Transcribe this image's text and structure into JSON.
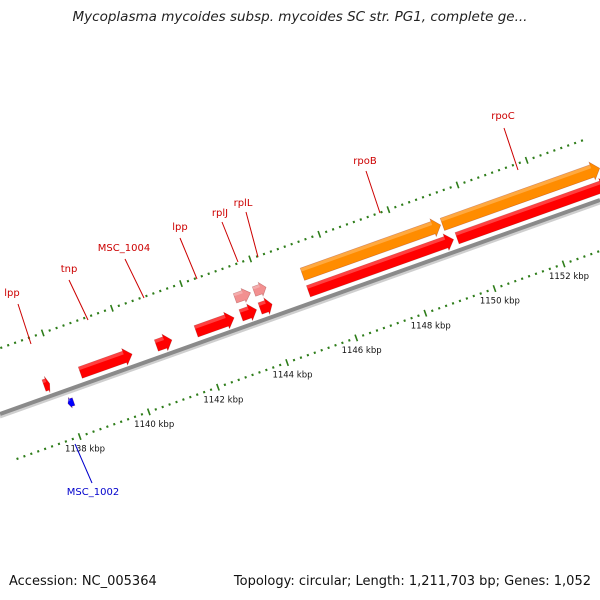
{
  "title": "Mycoplasma mycoides subsp. mycoides SC str. PG1, complete ge...",
  "footer": {
    "accession": "Accession: NC_005364",
    "topology": "Topology: circular; Length: 1,211,703 bp; Genes: 1,052"
  },
  "colors": {
    "forward_gene": "#ff0000",
    "reverse_gene": "#0000ff",
    "rna_gene": "#ff8c00",
    "faint_gene": "#f29090",
    "tick": "#2e7d1a",
    "backbone": "#8a8a8a",
    "forward_label": "#cc0000",
    "reverse_label": "#0000cc"
  },
  "axis": {
    "unit": "kbp",
    "major_ticks_kbp": [
      1138,
      1140,
      1142,
      1144,
      1146,
      1148,
      1150,
      1152
    ],
    "tick_labels": [
      "1138 kbp",
      "1140 kbp",
      "1142 kbp",
      "1144 kbp",
      "1146 kbp",
      "1148 kbp",
      "1150 kbp",
      "1152 kbp"
    ]
  },
  "genes": [
    {
      "label": "lpp",
      "strand": "+",
      "start_kbp": 1137.55,
      "end_kbp": 1137.7,
      "type": "cds"
    },
    {
      "label": "",
      "strand": "-",
      "start_kbp": 1138.0,
      "end_kbp": 1138.15,
      "type": "cds"
    },
    {
      "label": "tnp",
      "strand": "+",
      "start_kbp": 1138.6,
      "end_kbp": 1140.1,
      "type": "cds"
    },
    {
      "label": "MSC_1004",
      "strand": "+",
      "start_kbp": 1140.8,
      "end_kbp": 1141.25,
      "type": "cds"
    },
    {
      "label": "lpp",
      "strand": "+",
      "start_kbp": 1141.95,
      "end_kbp": 1143.05,
      "type": "cds"
    },
    {
      "label": "rplJ",
      "strand": "+",
      "start_kbp": 1143.25,
      "end_kbp": 1143.7,
      "type": "cds"
    },
    {
      "label": "",
      "strand": "+",
      "start_kbp": 1143.25,
      "end_kbp": 1143.7,
      "type": "faint"
    },
    {
      "label": "rplL",
      "strand": "+",
      "start_kbp": 1143.8,
      "end_kbp": 1144.15,
      "type": "cds"
    },
    {
      "label": "",
      "strand": "+",
      "start_kbp": 1143.8,
      "end_kbp": 1144.15,
      "type": "faint"
    },
    {
      "label": "rpoB",
      "strand": "+",
      "start_kbp": 1145.2,
      "end_kbp": 1149.4,
      "type": "cds"
    },
    {
      "label": "",
      "strand": "+",
      "start_kbp": 1145.2,
      "end_kbp": 1149.2,
      "type": "rna"
    },
    {
      "label": "rpoC",
      "strand": "+",
      "start_kbp": 1149.5,
      "end_kbp": 1153.9,
      "type": "cds"
    },
    {
      "label": "",
      "strand": "+",
      "start_kbp": 1149.25,
      "end_kbp": 1153.8,
      "type": "rna"
    }
  ],
  "gene_labels": [
    {
      "text": "lpp",
      "strand": "+"
    },
    {
      "text": "tnp",
      "strand": "+"
    },
    {
      "text": "MSC_1004",
      "strand": "+"
    },
    {
      "text": "lpp",
      "strand": "+"
    },
    {
      "text": "rplJ",
      "strand": "+"
    },
    {
      "text": "rplL",
      "strand": "+"
    },
    {
      "text": "rpoB",
      "strand": "+"
    },
    {
      "text": "rpoC",
      "strand": "+"
    },
    {
      "text": "MSC_1002",
      "strand": "-"
    }
  ]
}
